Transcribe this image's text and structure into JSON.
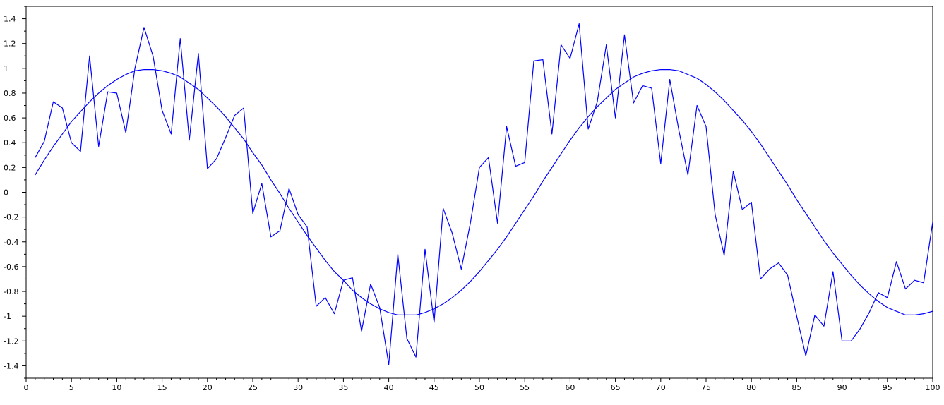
{
  "chart_data": {
    "type": "line",
    "title": "",
    "xlabel": "",
    "ylabel": "",
    "xlim": [
      0,
      100
    ],
    "ylim": [
      -1.5,
      1.5
    ],
    "x_ticks": [
      0,
      5,
      10,
      15,
      20,
      25,
      30,
      35,
      40,
      45,
      50,
      55,
      60,
      65,
      70,
      75,
      80,
      85,
      90,
      95,
      100
    ],
    "y_ticks": [
      -1.4,
      -1.2,
      -1,
      -0.8,
      -0.6,
      -0.4,
      -0.2,
      0,
      0.2,
      0.4,
      0.6,
      0.8,
      1,
      1.2,
      1.4
    ],
    "grid": false,
    "legend": "none",
    "line_color": "#0000ff",
    "x": [
      1,
      2,
      3,
      4,
      5,
      6,
      7,
      8,
      9,
      10,
      11,
      12,
      13,
      14,
      15,
      16,
      17,
      18,
      19,
      20,
      21,
      22,
      23,
      24,
      25,
      26,
      27,
      28,
      29,
      30,
      31,
      32,
      33,
      34,
      35,
      36,
      37,
      38,
      39,
      40,
      41,
      42,
      43,
      44,
      45,
      46,
      47,
      48,
      49,
      50,
      51,
      52,
      53,
      54,
      55,
      56,
      57,
      58,
      59,
      60,
      61,
      62,
      63,
      64,
      65,
      66,
      67,
      68,
      69,
      70,
      71,
      72,
      73,
      74,
      75,
      76,
      77,
      78,
      79,
      80,
      81,
      82,
      83,
      84,
      85,
      86,
      87,
      88,
      89,
      90,
      91,
      92,
      93,
      94,
      95,
      96,
      97,
      98,
      99,
      100
    ],
    "series": [
      {
        "values": [
          0.28,
          0.41,
          0.73,
          0.68,
          0.4,
          0.33,
          1.1,
          0.37,
          0.81,
          0.8,
          0.48,
          1.0,
          1.33,
          1.1,
          0.66,
          0.47,
          1.24,
          0.42,
          1.12,
          0.19,
          0.27,
          0.44,
          0.62,
          0.68,
          -0.17,
          0.07,
          -0.36,
          -0.31,
          0.03,
          -0.18,
          -0.28,
          -0.92,
          -0.85,
          -0.98,
          -0.71,
          -0.69,
          -1.12,
          -0.74,
          -0.93,
          -1.39,
          -0.5,
          -1.18,
          -1.33,
          -0.46,
          -1.05,
          -0.13,
          -0.33,
          -0.62,
          -0.25,
          0.2,
          0.28,
          -0.25,
          0.53,
          0.21,
          0.24,
          1.06,
          1.07,
          0.47,
          1.19,
          1.08,
          1.36,
          0.51,
          0.73,
          1.19,
          0.6,
          1.27,
          0.72,
          0.86,
          0.84,
          0.23,
          0.91,
          0.5,
          0.14,
          0.7,
          0.53,
          -0.18,
          -0.51,
          0.17,
          -0.14,
          -0.08,
          -0.7,
          -0.62,
          -0.57,
          -0.67,
          -1.0,
          -1.32,
          -0.99,
          -1.08,
          -0.64,
          -1.2,
          -1.2,
          -1.1,
          -0.97,
          -0.81,
          -0.85,
          -0.56,
          -0.78,
          -0.71,
          -0.73,
          -0.24
        ]
      },
      {
        "values": [
          0.14,
          0.26,
          0.37,
          0.47,
          0.57,
          0.65,
          0.73,
          0.8,
          0.86,
          0.91,
          0.95,
          0.98,
          0.99,
          0.99,
          0.98,
          0.96,
          0.93,
          0.88,
          0.83,
          0.76,
          0.69,
          0.61,
          0.52,
          0.43,
          0.32,
          0.22,
          0.1,
          -0.01,
          -0.13,
          -0.24,
          -0.35,
          -0.45,
          -0.55,
          -0.64,
          -0.71,
          -0.79,
          -0.85,
          -0.9,
          -0.94,
          -0.97,
          -0.99,
          -0.99,
          -0.99,
          -0.97,
          -0.94,
          -0.9,
          -0.85,
          -0.79,
          -0.72,
          -0.64,
          -0.55,
          -0.46,
          -0.36,
          -0.25,
          -0.14,
          -0.03,
          0.09,
          0.2,
          0.31,
          0.42,
          0.52,
          0.61,
          0.69,
          0.76,
          0.83,
          0.88,
          0.93,
          0.96,
          0.98,
          0.99,
          0.99,
          0.98,
          0.95,
          0.92,
          0.87,
          0.81,
          0.74,
          0.66,
          0.58,
          0.49,
          0.39,
          0.28,
          0.17,
          0.06,
          -0.06,
          -0.17,
          -0.28,
          -0.39,
          -0.49,
          -0.58,
          -0.67,
          -0.75,
          -0.82,
          -0.88,
          -0.93,
          -0.96,
          -0.99,
          -0.99,
          -0.98,
          -0.96
        ]
      }
    ]
  }
}
